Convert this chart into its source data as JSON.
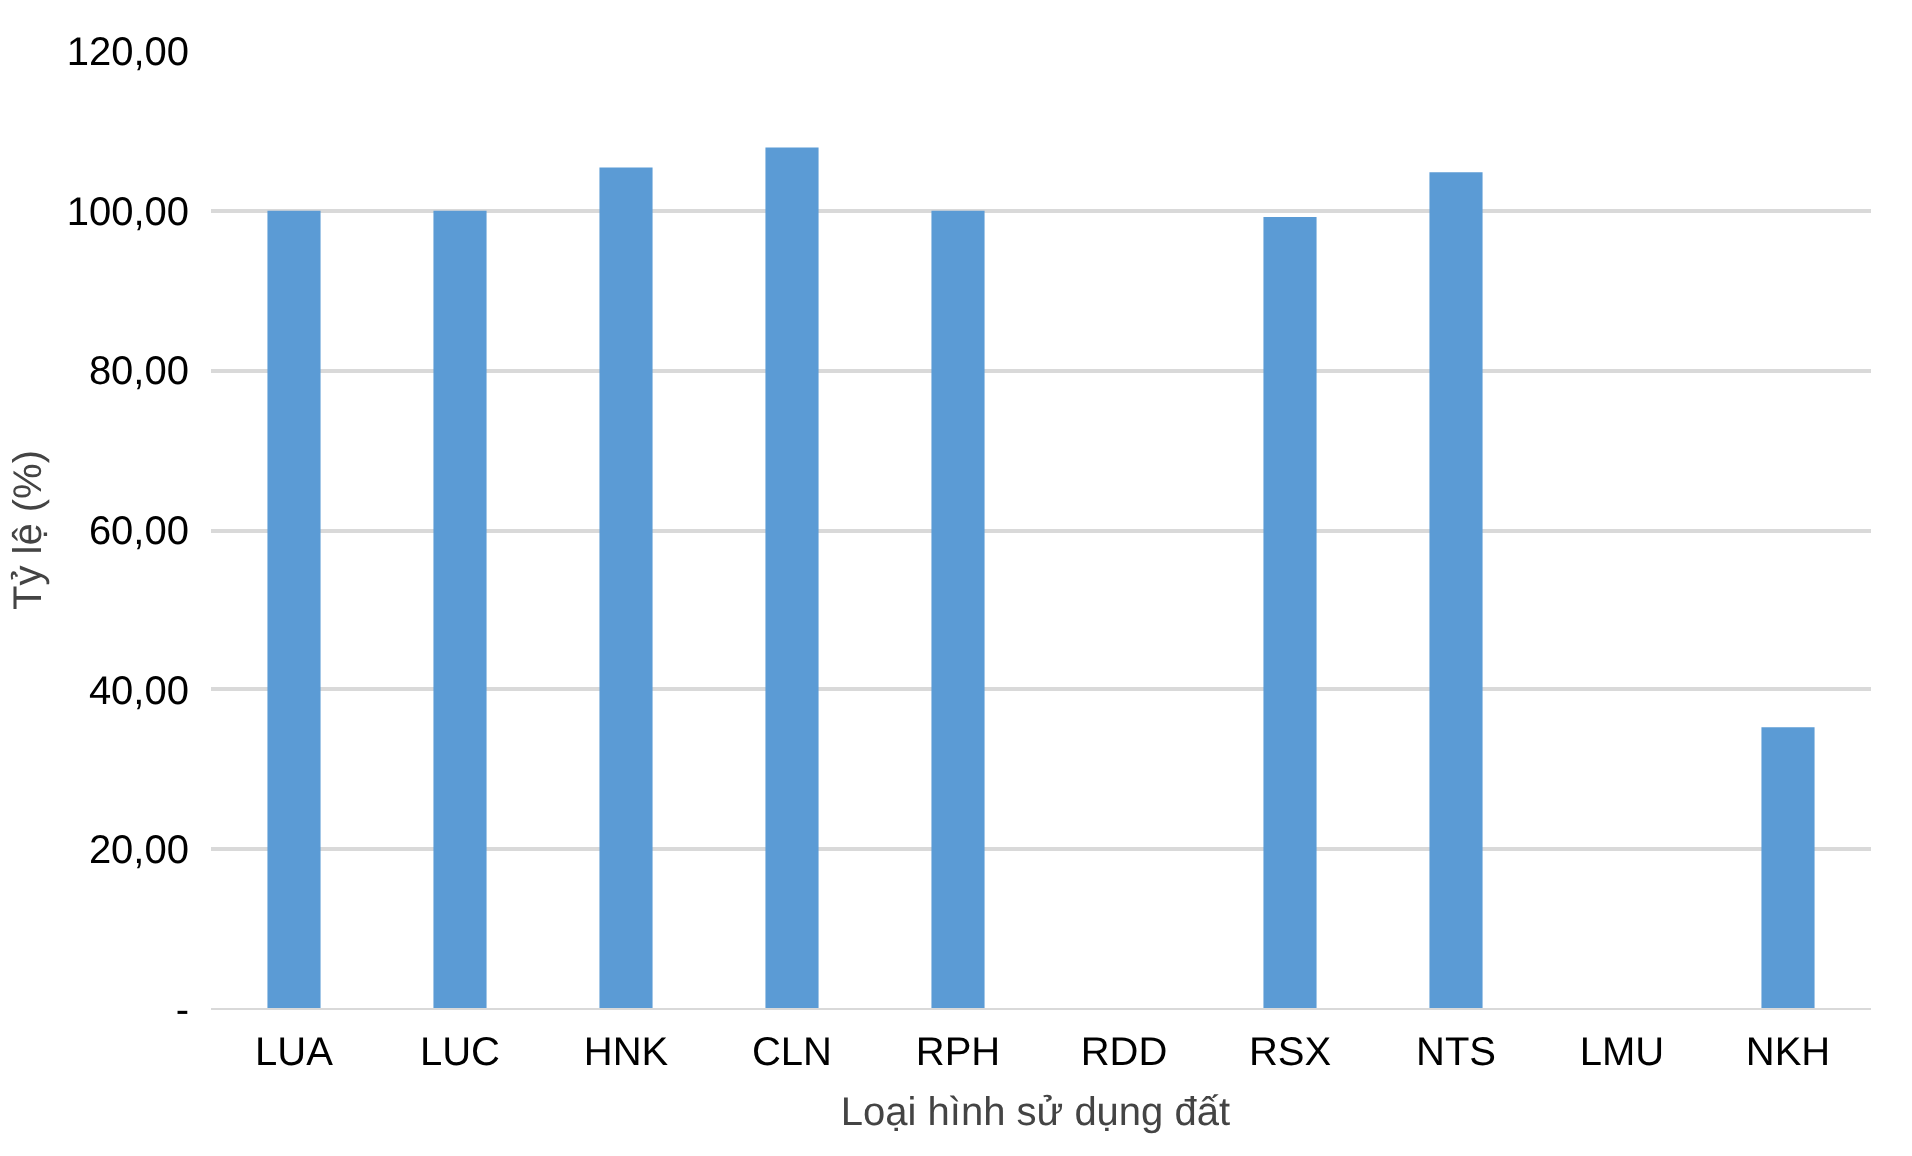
{
  "chart_data": {
    "type": "bar",
    "xlabel": "Loại  hình sử dụng đất",
    "ylabel": "Tỷ lệ (%)",
    "categories": [
      "LUA",
      "LUC",
      "HNK",
      "CLN",
      "RPH",
      "RDD",
      "RSX",
      "NTS",
      "LMU",
      "NKH"
    ],
    "values": [
      100,
      100,
      105.4,
      107.9,
      100,
      0,
      99.2,
      104.8,
      0,
      35.3
    ],
    "color": "#5b9bd5",
    "ylim": [
      0,
      120
    ],
    "yticks": [
      {
        "value": 0,
        "label": "-"
      },
      {
        "value": 20,
        "label": "20,00"
      },
      {
        "value": 40,
        "label": "40,00"
      },
      {
        "value": 60,
        "label": "60,00"
      },
      {
        "value": 80,
        "label": "80,00"
      },
      {
        "value": 100,
        "label": "100,00"
      },
      {
        "value": 120,
        "label": "120,00"
      }
    ],
    "grid": "y"
  }
}
